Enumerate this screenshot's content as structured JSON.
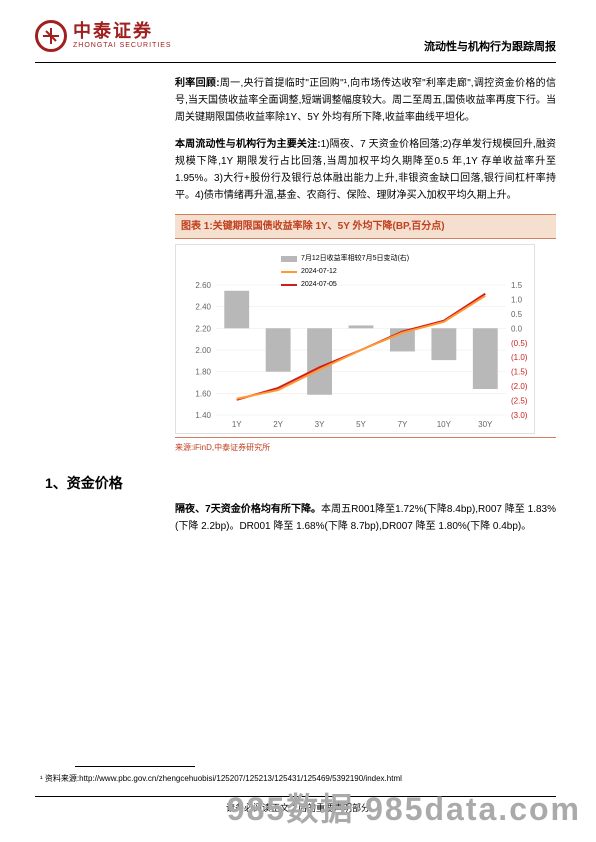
{
  "header": {
    "logo_cn": "中泰证券",
    "logo_en": "ZHONGTAI SECURITIES",
    "logo_symbol": "⊕",
    "report_title": "流动性与机构行为跟踪周报"
  },
  "body": {
    "para1_bold": "利率回顾:",
    "para1": "周一,央行首提临时\"正回购\"¹,向市场传达收窄\"利率走廊\",调控资金价格的信号,当天国债收益率全面调整,短端调整幅度较大。周二至周五,国债收益率再度下行。当周关键期限国债收益率除1Y、5Y 外均有所下降,收益率曲线平坦化。",
    "para2_bold": "本周流动性与机构行为主要关注:",
    "para2": "1)隔夜、7 天资金价格回落;2)存单发行规模回升,融资规模下降,1Y 期限发行占比回落,当周加权平均久期降至0.5 年,1Y 存单收益率升至 1.95%。3)大行+股份行及银行总体融出能力上升,非银资金缺口回落,银行间杠杆率持平。4)债市情绪再升温,基金、农商行、保险、理财净买入加权平均久期上升。",
    "section1_title": "1、资金价格",
    "para3_bold": "隔夜、7天资金价格均有所下降。",
    "para3": "本周五R001降至1.72%(下降8.4bp),R007 降至 1.83%(下降 2.2bp)。DR001 降至 1.68%(下降 8.7bp),DR007 降至 1.80%(下降 0.4bp)。"
  },
  "chart": {
    "title": "图表 1:关键期限国债收益率除 1Y、5Y 外均下降(BP,百分点)",
    "type": "combo",
    "legend": {
      "bar": "7月12日收益率相较7月5日变动(右)",
      "line1": "2024-07-12",
      "line2": "2024-07-05"
    },
    "categories": [
      "1Y",
      "2Y",
      "3Y",
      "5Y",
      "7Y",
      "10Y",
      "30Y"
    ],
    "bar_values": [
      1.3,
      -1.5,
      -2.3,
      0.1,
      -0.8,
      -1.1,
      -2.1
    ],
    "line1_values": [
      1.55,
      1.63,
      1.82,
      2.0,
      2.16,
      2.26,
      2.5
    ],
    "line2_values": [
      1.54,
      1.65,
      1.84,
      2.0,
      2.17,
      2.27,
      2.52
    ],
    "left_axis": {
      "min": 1.4,
      "max": 2.6,
      "step": 0.2
    },
    "right_axis": {
      "min": -3.0,
      "max": 1.5,
      "step": 0.5
    },
    "bar_color": "#b8b8b8",
    "line1_color": "#ff9933",
    "line2_color": "#cc2020",
    "grid_color": "#e8e8e8",
    "source": "来源:iFinD,中泰证券研究所"
  },
  "footnote": {
    "marker": "¹",
    "text": "资料来源:http://www.pbc.gov.cn/zhengcehuobisi/125207/125213/125431/125469/5392190/index.html"
  },
  "footer": {
    "text": "请务必阅读正文之后的重要声明部分"
  },
  "watermark": "985数据 985data.com"
}
